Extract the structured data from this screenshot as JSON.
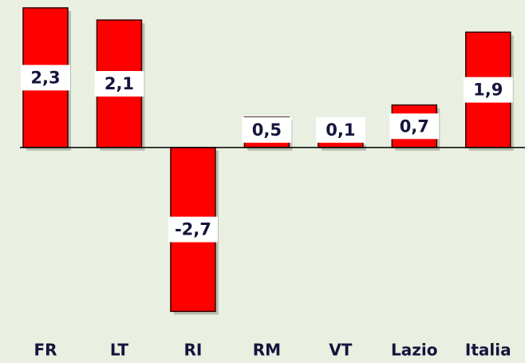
{
  "chart_data": {
    "type": "bar",
    "categories": [
      "FR",
      "LT",
      "RI",
      "RM",
      "VT",
      "Lazio",
      "Italia"
    ],
    "values": [
      2.3,
      2.1,
      -2.7,
      0.5,
      0.1,
      0.7,
      1.9
    ],
    "value_labels": [
      "2,3",
      "2,1",
      "-2,7",
      "0,5",
      "0,1",
      "0,7",
      "1,9"
    ],
    "color": "#ff0000",
    "ylim": [
      -3.55,
      2.43
    ]
  }
}
